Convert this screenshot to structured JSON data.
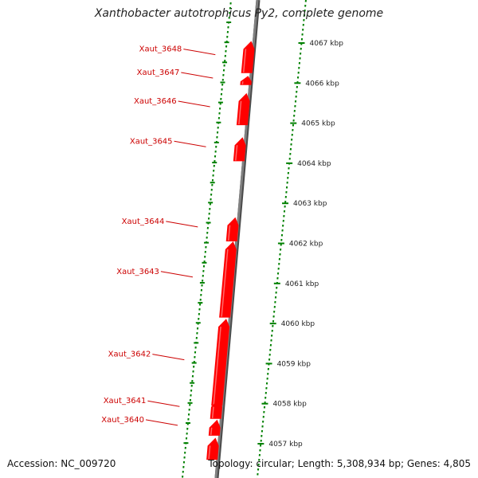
{
  "title": "Xanthobacter autotrophicus Py2, complete genome",
  "footer": {
    "accession": "Accession: NC_009720",
    "topology": "Topology: circular; Length: 5,308,934 bp; Genes: 4,805"
  },
  "colors": {
    "gene": "#ff0000",
    "gene_label": "#cc0000",
    "backbone": "#808080",
    "tick": "#008000",
    "text": "#222222"
  },
  "axis": {
    "unit": "kbp",
    "ticks": [
      {
        "kbp": 4067,
        "label": "4067 kbp"
      },
      {
        "kbp": 4066,
        "label": "4066 kbp"
      },
      {
        "kbp": 4065,
        "label": "4065 kbp"
      },
      {
        "kbp": 4064,
        "label": "4064 kbp"
      },
      {
        "kbp": 4063,
        "label": "4063 kbp"
      },
      {
        "kbp": 4062,
        "label": "4062 kbp"
      },
      {
        "kbp": 4061,
        "label": "4061 kbp"
      },
      {
        "kbp": 4060,
        "label": "4060 kbp"
      },
      {
        "kbp": 4059,
        "label": "4059 kbp"
      },
      {
        "kbp": 4058,
        "label": "4058 kbp"
      },
      {
        "kbp": 4057,
        "label": "4057 kbp"
      }
    ]
  },
  "genes": [
    {
      "name": "Xaut_3648",
      "start_kbp": 4066.25,
      "end_kbp": 4067.05,
      "strand": "+"
    },
    {
      "name": "Xaut_3647",
      "start_kbp": 4065.95,
      "end_kbp": 4066.18,
      "strand": "+"
    },
    {
      "name": "Xaut_3646",
      "start_kbp": 4064.95,
      "end_kbp": 4065.75,
      "strand": "+"
    },
    {
      "name": "Xaut_3645",
      "start_kbp": 4064.05,
      "end_kbp": 4064.65,
      "strand": "+"
    },
    {
      "name": "Xaut_3644",
      "start_kbp": 4062.05,
      "end_kbp": 4062.65,
      "strand": "+"
    },
    {
      "name": "Xaut_3643",
      "start_kbp": 4060.15,
      "end_kbp": 4062.05,
      "strand": "+"
    },
    {
      "name": "Xaut_3642",
      "start_kbp": 4057.95,
      "end_kbp": 4060.12,
      "strand": "+"
    },
    {
      "name": "Xaut_3641",
      "start_kbp": 4057.62,
      "end_kbp": 4058.12,
      "strand": "+"
    },
    {
      "name": "Xaut_3640",
      "start_kbp": 4057.2,
      "end_kbp": 4057.6,
      "strand": "+"
    },
    {
      "name": "",
      "start_kbp": 4056.6,
      "end_kbp": 4057.15,
      "strand": "+"
    }
  ]
}
